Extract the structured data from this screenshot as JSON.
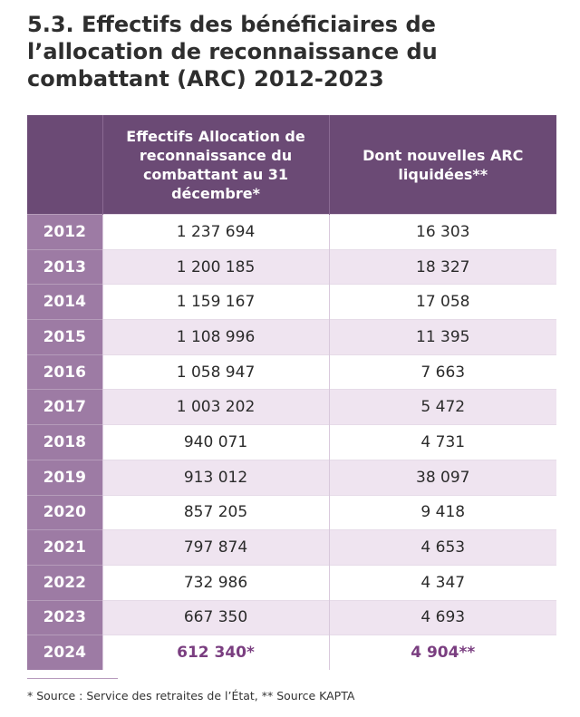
{
  "header": {
    "title": "5.3. Effectifs des bénéficiaires de l’allocation de reconnaissance du combattant (ARC) 2012-2023"
  },
  "table": {
    "columns": [
      "Effectifs Allocation de reconnaissance du combattant au 31 décembre*",
      "Dont nouvelles ARC liquidées**"
    ],
    "rows": [
      [
        "2012",
        "1 237 694",
        "16 303"
      ],
      [
        "2013",
        "1 200 185",
        "18 327"
      ],
      [
        "2014",
        "1 159 167",
        "17 058"
      ],
      [
        "2015",
        "1 108 996",
        "11 395"
      ],
      [
        "2016",
        "1 058 947",
        "7 663"
      ],
      [
        "2017",
        "1 003 202",
        "5 472"
      ],
      [
        "2018",
        "940 071",
        "4 731"
      ],
      [
        "2019",
        "913 012",
        "38 097"
      ],
      [
        "2020",
        "857 205",
        "9 418"
      ],
      [
        "2021",
        "797 874",
        "4 653"
      ],
      [
        "2022",
        "732 986",
        "4 347"
      ],
      [
        "2023",
        "667 350",
        "4 693"
      ],
      [
        "2024",
        "612 340*",
        "4 904**"
      ]
    ]
  },
  "footnote": "* Source : Service des retraites de l’État, ** Source KAPTA"
}
